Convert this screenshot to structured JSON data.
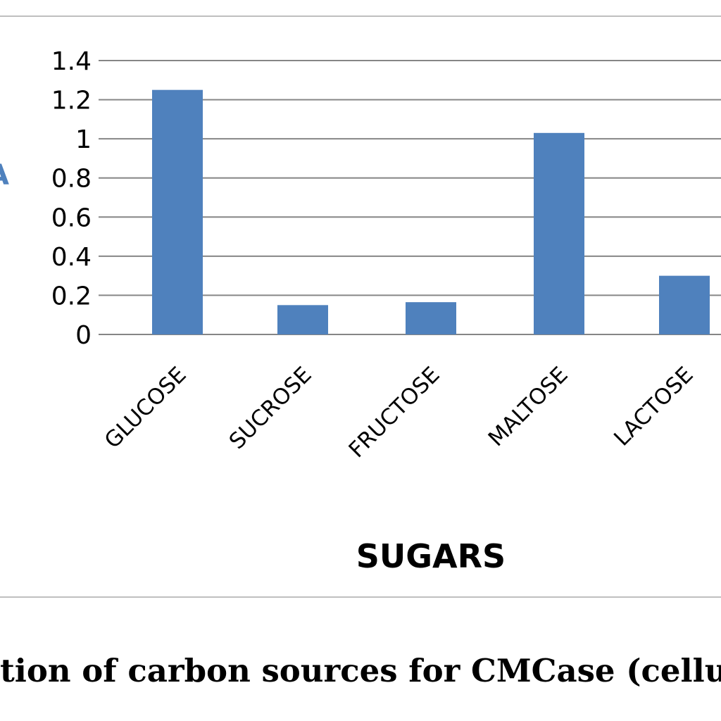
{
  "chart_data": {
    "type": "bar",
    "categories": [
      "GLUCOSE",
      "SUCROSE",
      "FRUCTOSE",
      "MALTOSE",
      "LACTOSE"
    ],
    "values": [
      1.25,
      0.15,
      0.165,
      1.03,
      0.3
    ],
    "ylabel": "A",
    "xlabel": "SUGARS",
    "ylim": [
      0,
      1.4
    ],
    "yticks": [
      "0",
      "0.2",
      "0.4",
      "0.6",
      "0.8",
      "1",
      "1.2",
      "1.4"
    ],
    "grid": true,
    "legend": "none",
    "bar_color": "#4f81bd"
  },
  "caption": "tion  of carbon sources for CMCase (cellu"
}
